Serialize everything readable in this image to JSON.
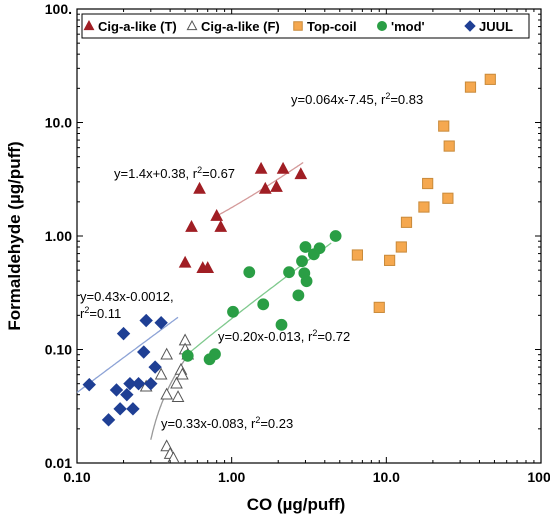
{
  "chart_data": {
    "type": "scatter",
    "xlabel": "CO (µg/puff)",
    "ylabel": "Formaldehyde (µg/puff)",
    "xscale": "log",
    "yscale": "log",
    "xlim": [
      0.1,
      100
    ],
    "ylim": [
      0.01,
      100
    ],
    "xticks": [
      "0.10",
      "1.00",
      "10.0",
      "100."
    ],
    "yticks": [
      "0.01",
      "0.10",
      "1.00",
      "10.0",
      "100."
    ],
    "grid": false,
    "legend_position": "top",
    "series": [
      {
        "name": "Cig-a-like (T)",
        "marker": "triangle-up",
        "color": "#a01e24",
        "filled": true,
        "points": [
          [
            0.5,
            0.58
          ],
          [
            0.55,
            1.2
          ],
          [
            0.62,
            2.6
          ],
          [
            0.65,
            0.52
          ],
          [
            0.7,
            0.52
          ],
          [
            0.8,
            1.5
          ],
          [
            0.85,
            1.2
          ],
          [
            1.55,
            3.9
          ],
          [
            1.65,
            2.6
          ],
          [
            1.95,
            2.7
          ],
          [
            2.15,
            3.9
          ],
          [
            2.8,
            3.5
          ]
        ]
      },
      {
        "name": "Cig-a-like (F)",
        "marker": "triangle-up",
        "color": "#555555",
        "filled": false,
        "points": [
          [
            0.28,
            0.047
          ],
          [
            0.35,
            0.06
          ],
          [
            0.38,
            0.04
          ],
          [
            0.38,
            0.09
          ],
          [
            0.38,
            0.014
          ],
          [
            0.4,
            0.012
          ],
          [
            0.42,
            0.011
          ],
          [
            0.44,
            0.05
          ],
          [
            0.45,
            0.038
          ],
          [
            0.47,
            0.066
          ],
          [
            0.48,
            0.06
          ],
          [
            0.5,
            0.12
          ],
          [
            0.5,
            0.1
          ],
          [
            0.52,
            0.09
          ]
        ]
      },
      {
        "name": "Top-coil",
        "marker": "square",
        "color": "#f5a84f",
        "filled": true,
        "points": [
          [
            6.5,
            0.68
          ],
          [
            9.0,
            0.235
          ],
          [
            10.5,
            0.61
          ],
          [
            12.5,
            0.8
          ],
          [
            13.5,
            1.32
          ],
          [
            17.5,
            1.8
          ],
          [
            18.5,
            2.9
          ],
          [
            23.5,
            9.3
          ],
          [
            25.0,
            2.15
          ],
          [
            25.5,
            6.2
          ],
          [
            35.0,
            20.5
          ],
          [
            47.0,
            24.0
          ]
        ]
      },
      {
        "name": "'mod'",
        "marker": "circle",
        "color": "#2a9e45",
        "filled": true,
        "points": [
          [
            0.52,
            0.088
          ],
          [
            0.72,
            0.082
          ],
          [
            0.78,
            0.091
          ],
          [
            1.02,
            0.215
          ],
          [
            1.3,
            0.48
          ],
          [
            1.6,
            0.25
          ],
          [
            2.1,
            0.165
          ],
          [
            2.35,
            0.48
          ],
          [
            2.7,
            0.3
          ],
          [
            2.85,
            0.6
          ],
          [
            2.95,
            0.47
          ],
          [
            3.0,
            0.8
          ],
          [
            3.05,
            0.4
          ],
          [
            3.4,
            0.69
          ],
          [
            3.7,
            0.78
          ],
          [
            4.7,
            1.0
          ]
        ]
      },
      {
        "name": "JUUL",
        "marker": "diamond",
        "color": "#1f3f94",
        "filled": true,
        "points": [
          [
            0.12,
            0.049
          ],
          [
            0.16,
            0.024
          ],
          [
            0.18,
            0.044
          ],
          [
            0.19,
            0.03
          ],
          [
            0.2,
            0.138
          ],
          [
            0.21,
            0.04
          ],
          [
            0.22,
            0.05
          ],
          [
            0.23,
            0.03
          ],
          [
            0.25,
            0.05
          ],
          [
            0.27,
            0.095
          ],
          [
            0.28,
            0.18
          ],
          [
            0.3,
            0.05
          ],
          [
            0.32,
            0.07
          ],
          [
            0.35,
            0.172
          ]
        ]
      }
    ],
    "fits": [
      {
        "series": "Cig-a-like (T)",
        "color": "#d49a9a",
        "kind": "linear",
        "m": 1.4,
        "b": 0.38,
        "x_range": [
          0.8,
          2.9
        ]
      },
      {
        "series": "Cig-a-like (F)",
        "color": "#999999",
        "kind": "linear",
        "m": 0.33,
        "b": -0.083,
        "x_range": [
          0.3,
          0.5
        ]
      },
      {
        "series": "Top-coil",
        "color": "#f7c98c",
        "kind": "linear",
        "m": 0.064,
        "b": -7.45,
        "x_range": [
          12.0,
          48.0
        ]
      },
      {
        "series": "'mod'",
        "color": "#7fc98d",
        "kind": "linear",
        "m": 0.2,
        "b": -0.013,
        "x_range": [
          0.5,
          4.4
        ]
      },
      {
        "series": "JUUL",
        "color": "#8da3d6",
        "kind": "linear",
        "m": 0.43,
        "b": -0.0012,
        "x_range": [
          0.1,
          0.45
        ]
      }
    ],
    "annotations": [
      {
        "text": "y=0.064x-7.45, r",
        "sup": "2",
        "tail": "=0.83"
      },
      {
        "text": "y=1.4x+0.38, r",
        "sup": "2",
        "tail": "=0.67"
      },
      {
        "text": "y=0.43x-0.0012,",
        "sup": "",
        "tail": ""
      },
      {
        "text": "r",
        "sup": "2",
        "tail": "=0.11"
      },
      {
        "text": "y=0.20x-0.013, r",
        "sup": "2",
        "tail": "=0.72"
      },
      {
        "text": "y=0.33x-0.083, r",
        "sup": "2",
        "tail": "=0.23"
      }
    ]
  }
}
